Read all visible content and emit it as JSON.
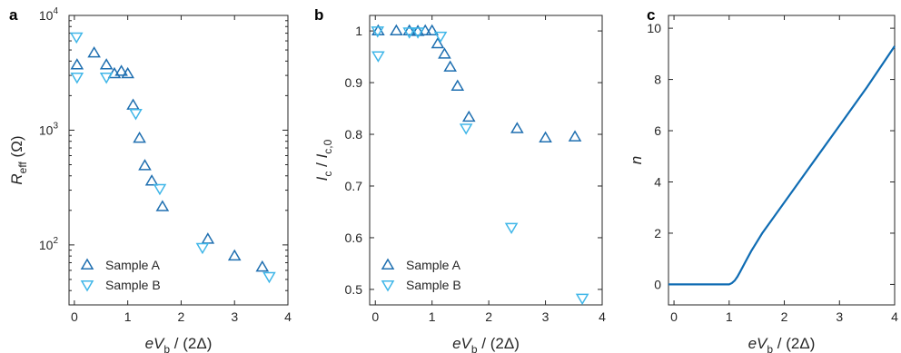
{
  "colors": {
    "sample_a": "#1f6fb0",
    "sample_b": "#3fb6e8",
    "curve": "#0f6cb3",
    "axis": "#262626"
  },
  "chart_data": [
    {
      "panel": "a",
      "type": "scatter",
      "xlabel": {
        "main": "eV",
        "sub": "b",
        "rest": " / (2Δ)"
      },
      "ylabel": {
        "main": "R",
        "sub": "eff",
        "rest": " (Ω)"
      },
      "xlim": [
        -0.1,
        4
      ],
      "ylim": [
        30,
        10000
      ],
      "yscale": "log",
      "xticks": [
        0,
        1,
        2,
        3,
        4
      ],
      "yticks": [
        {
          "value": 100,
          "base": "10",
          "exp": "2"
        },
        {
          "value": 1000,
          "base": "10",
          "exp": "3"
        },
        {
          "value": 10000,
          "base": "10",
          "exp": "4"
        }
      ],
      "legend": {
        "position": "bottom-left"
      },
      "series": [
        {
          "name": "Sample A",
          "marker": "triangle-up",
          "x": [
            0.05,
            0.37,
            0.6,
            0.75,
            0.88,
            1.0,
            1.1,
            1.22,
            1.32,
            1.45,
            1.65,
            2.5,
            3.0,
            3.52
          ],
          "y": [
            3700,
            4700,
            3700,
            3100,
            3250,
            3100,
            1650,
            850,
            490,
            360,
            215,
            112,
            80,
            64
          ]
        },
        {
          "name": "Sample B",
          "marker": "triangle-down",
          "x": [
            0.04,
            0.05,
            0.6,
            1.15,
            1.6,
            2.4,
            3.65
          ],
          "y": [
            6500,
            2900,
            2900,
            1400,
            310,
            95,
            53
          ]
        }
      ]
    },
    {
      "panel": "b",
      "type": "scatter",
      "xlabel": {
        "main": "eV",
        "sub": "b",
        "rest": " / (2Δ)"
      },
      "ylabel": {
        "main": "I",
        "sub": "c",
        "mid": " / I",
        "sub2": "c,0"
      },
      "xlim": [
        -0.1,
        4
      ],
      "ylim": [
        0.47,
        1.03
      ],
      "xticks": [
        0,
        1,
        2,
        3,
        4
      ],
      "yticks": [
        0.5,
        0.6,
        0.7,
        0.8,
        0.9,
        1
      ],
      "legend": {
        "position": "bottom-left"
      },
      "series": [
        {
          "name": "Sample A",
          "marker": "triangle-up",
          "x": [
            0.05,
            0.37,
            0.6,
            0.75,
            0.88,
            1.0,
            1.1,
            1.22,
            1.32,
            1.45,
            1.65,
            2.5,
            3.0,
            3.52
          ],
          "y": [
            1.0,
            1.0,
            1.0,
            0.999,
            1.0,
            1.0,
            0.975,
            0.955,
            0.93,
            0.893,
            0.833,
            0.811,
            0.793,
            0.795
          ]
        },
        {
          "name": "Sample B",
          "marker": "triangle-down",
          "x": [
            0.04,
            0.05,
            0.6,
            0.75,
            1.15,
            1.6,
            2.4,
            3.65
          ],
          "y": [
            1.0,
            0.952,
            0.998,
            0.998,
            0.99,
            0.812,
            0.62,
            0.483
          ]
        }
      ]
    },
    {
      "panel": "c",
      "type": "line",
      "xlabel": {
        "main": "eV",
        "sub": "b",
        "rest": " / (2Δ)"
      },
      "ylabel": {
        "main": "n"
      },
      "xlim": [
        -0.1,
        4
      ],
      "ylim": [
        -0.8,
        10.5
      ],
      "xticks": [
        0,
        1,
        2,
        3,
        4
      ],
      "yticks": [
        0,
        2,
        4,
        6,
        8,
        10
      ],
      "series": [
        {
          "x": [
            -0.1,
            0.5,
            1.0,
            1.05,
            1.1,
            1.15,
            1.2,
            1.3,
            1.4,
            1.5,
            1.6,
            1.8,
            2.0,
            2.5,
            3.0,
            3.5,
            4.0
          ],
          "y": [
            0,
            0,
            0,
            0.05,
            0.15,
            0.3,
            0.5,
            0.9,
            1.3,
            1.65,
            2.0,
            2.6,
            3.2,
            4.7,
            6.2,
            7.7,
            9.3
          ]
        }
      ]
    }
  ]
}
